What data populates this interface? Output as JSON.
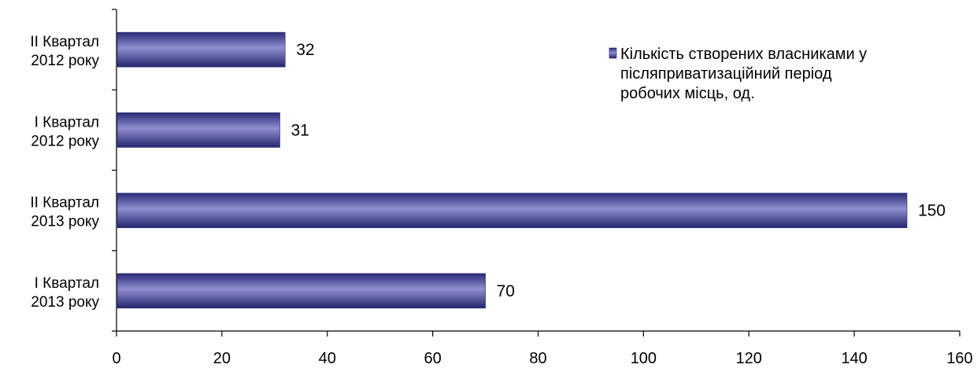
{
  "chart_data": {
    "type": "bar",
    "orientation": "horizontal",
    "categories": [
      [
        "II Квартал",
        "2012 року"
      ],
      [
        "І Квартал",
        "2012 року"
      ],
      [
        "II Квартал",
        "2013 року"
      ],
      [
        "І Квартал",
        "2013 року"
      ]
    ],
    "series": [
      {
        "name": "Кількість створених власниками у післяприватизаційний період робочих місць, од.",
        "values": [
          32,
          31,
          150,
          70
        ],
        "color": "#3b3b8f"
      }
    ],
    "data_labels": [
      "32",
      "31",
      "150",
      "70"
    ],
    "xlim": [
      0,
      160
    ],
    "x_ticks": [
      "0",
      "20",
      "40",
      "60",
      "80",
      "100",
      "120",
      "140",
      "160"
    ],
    "grid": false,
    "legend": {
      "position": "top-right",
      "lines": [
        "Кількість створених власниками у",
        "післяприватизаційний період",
        "робочих місць, од."
      ]
    }
  }
}
